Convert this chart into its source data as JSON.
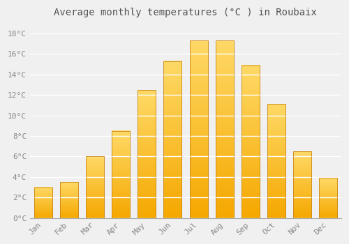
{
  "title": "Average monthly temperatures (°C ) in Roubaix",
  "months": [
    "Jan",
    "Feb",
    "Mar",
    "Apr",
    "May",
    "Jun",
    "Jul",
    "Aug",
    "Sep",
    "Oct",
    "Nov",
    "Dec"
  ],
  "values": [
    3.0,
    3.5,
    6.0,
    8.5,
    12.5,
    15.3,
    17.3,
    17.3,
    14.9,
    11.1,
    6.5,
    3.9
  ],
  "bar_color_bottom": "#F5A800",
  "bar_color_top": "#FFD966",
  "bar_edge_color": "#C8861A",
  "ylim": [
    0,
    19
  ],
  "yticks": [
    0,
    2,
    4,
    6,
    8,
    10,
    12,
    14,
    16,
    18
  ],
  "ytick_labels": [
    "0°C",
    "2°C",
    "4°C",
    "6°C",
    "8°C",
    "10°C",
    "12°C",
    "14°C",
    "16°C",
    "18°C"
  ],
  "background_color": "#f0f0f0",
  "grid_color": "#ffffff",
  "title_fontsize": 10,
  "tick_fontsize": 8,
  "bar_width": 0.7,
  "figsize": [
    5.0,
    3.5
  ],
  "dpi": 100
}
